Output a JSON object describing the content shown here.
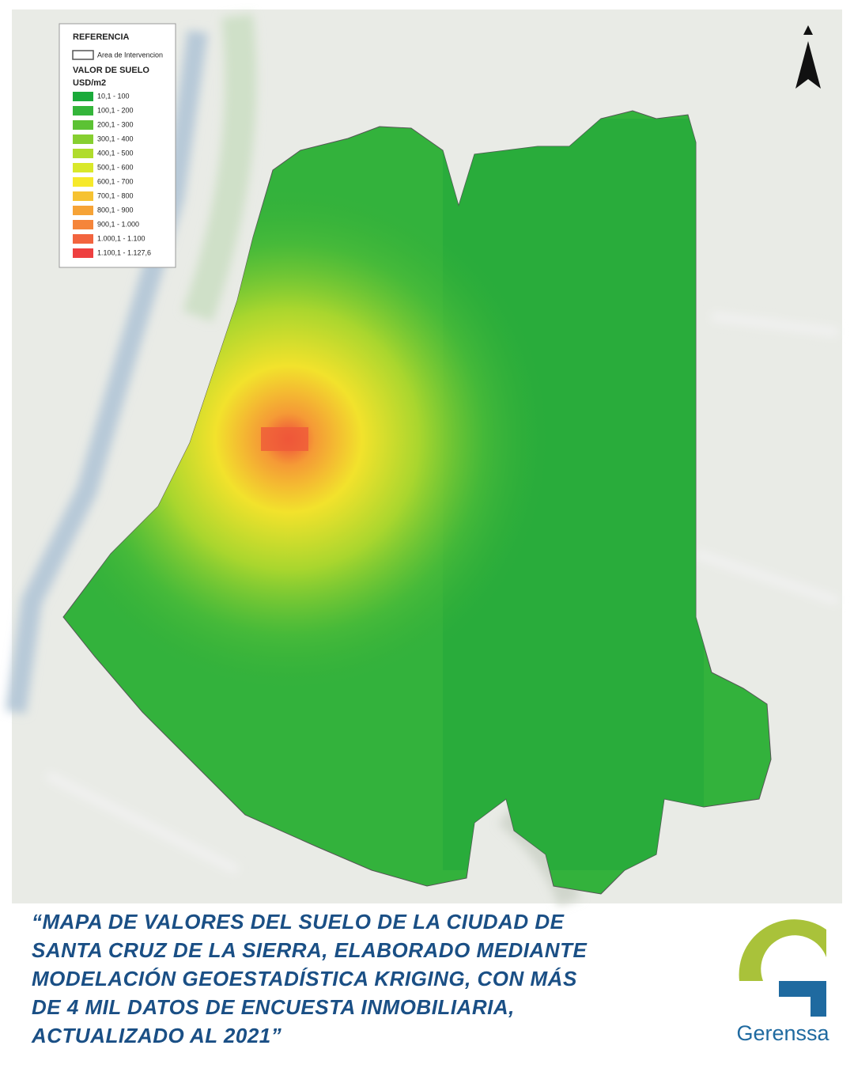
{
  "legend": {
    "title": "REFERENCIA",
    "boundary_label": "Area de Intervencion",
    "subtitle": "VALOR DE SUELO",
    "unit": "USD/m2",
    "items": [
      {
        "label": "10,1 - 100",
        "color": "#1aaa3a"
      },
      {
        "label": "100,1 - 200",
        "color": "#34b53a"
      },
      {
        "label": "200,1 - 300",
        "color": "#5cc234"
      },
      {
        "label": "300,1 - 400",
        "color": "#86cf30"
      },
      {
        "label": "400,1 - 500",
        "color": "#b0dc2c"
      },
      {
        "label": "500,1 - 600",
        "color": "#d9e82a"
      },
      {
        "label": "600,1 - 700",
        "color": "#f6e92a"
      },
      {
        "label": "700,1 - 800",
        "color": "#f6c232"
      },
      {
        "label": "800,1 - 900",
        "color": "#f6a336"
      },
      {
        "label": "900,1 - 1.000",
        "color": "#f5853a"
      },
      {
        "label": "1.000,1 - 1.100",
        "color": "#f2643e"
      },
      {
        "label": "1.100,1 - 1.127,6",
        "color": "#ee4040"
      }
    ]
  },
  "caption": [
    "“MAPA DE VALORES DEL SUELO DE LA CIUDAD DE",
    "SANTA CRUZ DE LA SIERRA, ELABORADO MEDIANTE",
    "MODELACIÓN GEOESTADÍSTICA KRIGING, CON MÁS",
    "DE 4 MIL DATOS DE ENCUESTA INMOBILIARIA,",
    "ACTUALIZADO AL 2021”"
  ],
  "logo": {
    "text": "Gerenssa"
  }
}
